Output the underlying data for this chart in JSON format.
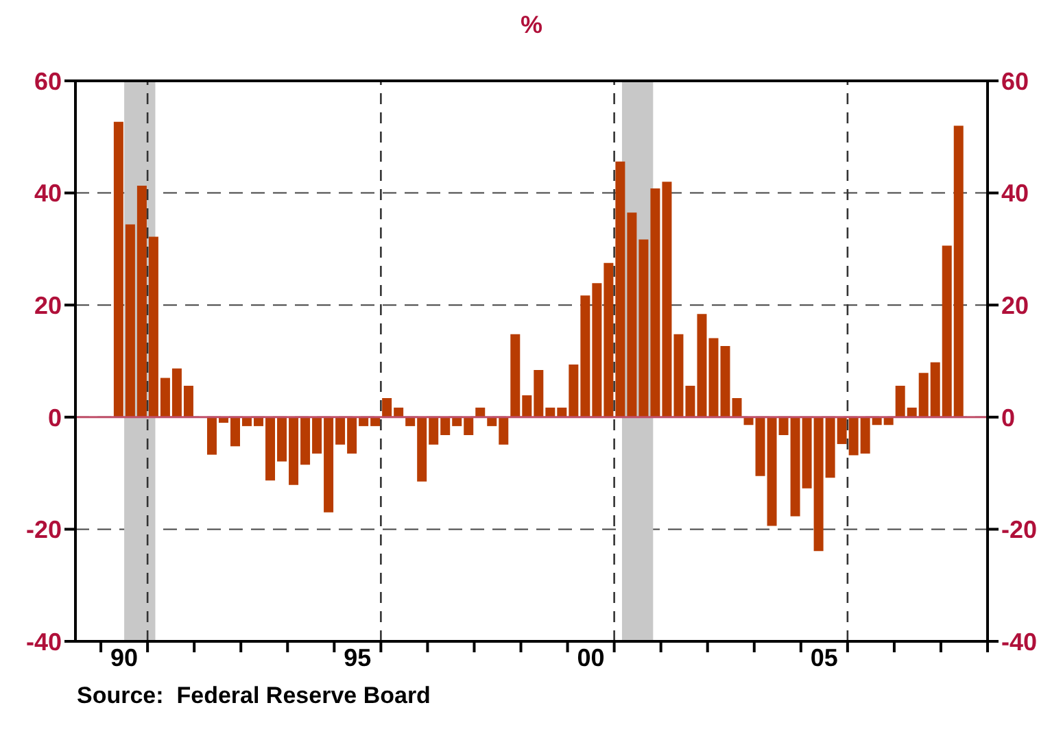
{
  "chart_data": {
    "type": "bar",
    "title": "%",
    "x": [
      "1990-05-15",
      "1990-08-15",
      "1990-11-15",
      "1991-02-15",
      "1991-05-15",
      "1991-08-15",
      "1991-11-15",
      "1992-02-15",
      "1992-05-15",
      "1992-08-15",
      "1992-11-15",
      "1993-02-15",
      "1993-05-15",
      "1993-08-15",
      "1993-11-15",
      "1994-02-15",
      "1994-05-15",
      "1994-08-15",
      "1994-11-15",
      "1995-02-15",
      "1995-05-15",
      "1995-08-15",
      "1995-11-15",
      "1996-02-15",
      "1996-05-15",
      "1996-08-15",
      "1996-11-15",
      "1997-02-15",
      "1997-05-15",
      "1997-08-15",
      "1997-11-15",
      "1998-02-15",
      "1998-05-15",
      "1998-08-15",
      "1998-11-15",
      "1999-02-15",
      "1999-05-15",
      "1999-08-15",
      "1999-11-15",
      "2000-02-15",
      "2000-05-15",
      "2000-08-15",
      "2000-11-15",
      "2001-02-15",
      "2001-05-15",
      "2001-08-15",
      "2001-11-15",
      "2002-02-15",
      "2002-05-15",
      "2002-08-15",
      "2002-11-15",
      "2003-02-15",
      "2003-05-15",
      "2003-08-15",
      "2003-11-15",
      "2004-02-15",
      "2004-05-15",
      "2004-08-15",
      "2004-11-15",
      "2005-02-15",
      "2005-05-15",
      "2005-08-15",
      "2005-11-15",
      "2006-02-15",
      "2006-05-15",
      "2006-08-15",
      "2006-11-15",
      "2007-02-15",
      "2007-05-15",
      "2007-08-15",
      "2007-11-15",
      "2008-02-15",
      "2008-05-15"
    ],
    "series": [
      {
        "color": "#b83c02",
        "values": [
          52.7,
          34.4,
          41.3,
          32.2,
          7.0,
          8.7,
          5.6,
          0,
          -6.7,
          -1.0,
          -5.2,
          -1.6,
          -1.6,
          -11.3,
          -7.9,
          -12.1,
          -8.5,
          -6.5,
          -17.0,
          -4.9,
          -6.5,
          -1.6,
          -1.6,
          3.4,
          1.7,
          -1.6,
          -11.5,
          -4.9,
          -3.2,
          -1.6,
          -3.2,
          1.7,
          -1.6,
          -4.9,
          14.8,
          3.9,
          8.4,
          1.7,
          1.7,
          9.4,
          21.7,
          23.9,
          27.5,
          45.6,
          36.5,
          31.7,
          40.8,
          42.0,
          14.8,
          5.6,
          18.4,
          14.1,
          12.7,
          3.4,
          -1.4,
          -10.5,
          -19.4,
          -3.2,
          -17.7,
          -12.7,
          -23.9,
          -10.8,
          -4.8,
          -6.8,
          -6.5,
          -1.4,
          -1.4,
          5.6,
          1.7,
          7.9,
          9.8,
          30.6,
          52.0
        ]
      }
    ],
    "xlim": [
      "1989-06-15",
      "2009-01-01"
    ],
    "xticks": [
      {
        "value": "1990-01-01",
        "label": null
      },
      {
        "value": "1990-07-01",
        "label": "90"
      },
      {
        "value": "1991-01-01",
        "label": null
      },
      {
        "value": "1992-01-01",
        "label": null
      },
      {
        "value": "1993-01-01",
        "label": null
      },
      {
        "value": "1994-01-01",
        "label": null
      },
      {
        "value": "1995-01-01",
        "label": null
      },
      {
        "value": "1995-07-01",
        "label": "95"
      },
      {
        "value": "1996-01-01",
        "label": null
      },
      {
        "value": "1997-01-01",
        "label": null
      },
      {
        "value": "1998-01-01",
        "label": null
      },
      {
        "value": "1999-01-01",
        "label": null
      },
      {
        "value": "2000-01-01",
        "label": null
      },
      {
        "value": "2000-07-01",
        "label": "00"
      },
      {
        "value": "2001-01-01",
        "label": null
      },
      {
        "value": "2002-01-01",
        "label": null
      },
      {
        "value": "2003-01-01",
        "label": null
      },
      {
        "value": "2004-01-01",
        "label": null
      },
      {
        "value": "2005-01-01",
        "label": null
      },
      {
        "value": "2005-07-01",
        "label": "05"
      },
      {
        "value": "2006-01-01",
        "label": null
      },
      {
        "value": "2007-01-01",
        "label": null
      },
      {
        "value": "2008-01-01",
        "label": null
      },
      {
        "value": "2009-01-01",
        "label": null
      }
    ],
    "ylim": [
      -40,
      60
    ],
    "yticks": [
      -40,
      -20,
      0,
      20,
      40,
      60
    ],
    "y2lim": [
      -40,
      60
    ],
    "y2ticks": [
      -40,
      -20,
      0,
      20,
      40,
      60
    ],
    "grid": "y",
    "ref_lines": [
      {
        "axis": "y",
        "value": 0,
        "color": "#c0506a",
        "line_style": "solid"
      },
      {
        "axis": "x",
        "value": "1991-01-01",
        "color": "#333333",
        "line_style": "dashed"
      },
      {
        "axis": "x",
        "value": "1996-01-01",
        "color": "#333333",
        "line_style": "dashed"
      },
      {
        "axis": "x",
        "value": "2001-01-01",
        "color": "#333333",
        "line_style": "dashed"
      },
      {
        "axis": "x",
        "value": "2006-01-01",
        "color": "#333333",
        "line_style": "dashed"
      }
    ],
    "bands": [
      {
        "axis": "x",
        "from": "1990-07-01",
        "to": "1991-03-01",
        "color": "#c8c8c8"
      },
      {
        "axis": "x",
        "from": "2001-03-01",
        "to": "2001-11-01",
        "color": "#c8c8c8"
      }
    ],
    "annotations": [
      "Source:  Federal Reserve Board"
    ]
  }
}
